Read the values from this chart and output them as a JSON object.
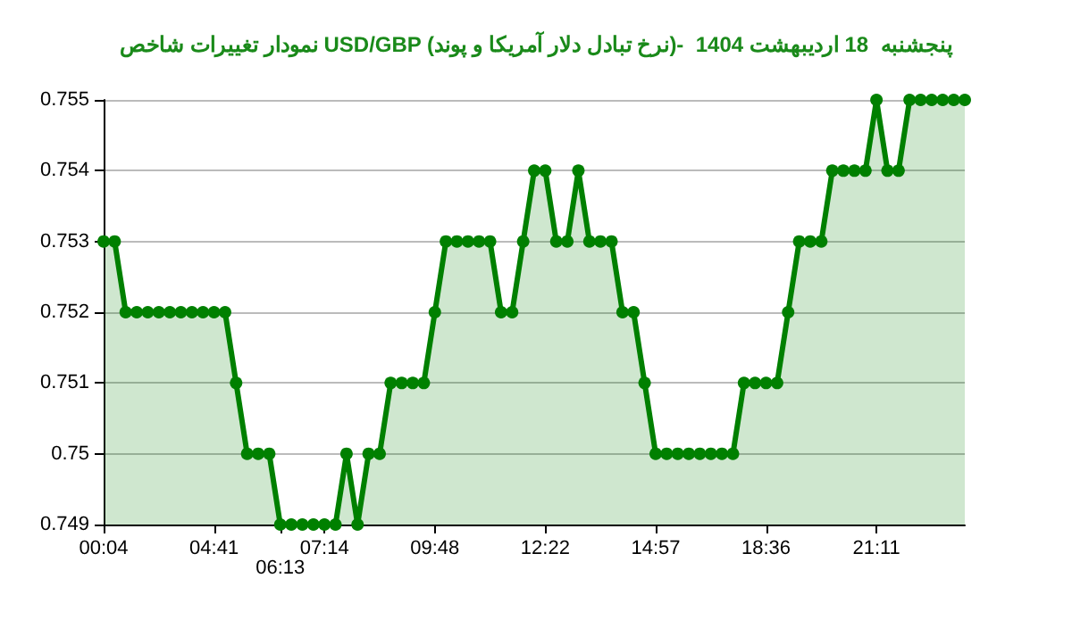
{
  "chart_data": {
    "type": "area",
    "title": "نمودار تغییرات شاخص USD/GBP (نرخ تبادل دلار آمریکا و پوند)-  پنجشنبه  18 اردیبهشت 1404",
    "categories": [
      "00:04",
      null,
      null,
      null,
      null,
      null,
      null,
      null,
      null,
      null,
      "04:41",
      null,
      null,
      null,
      null,
      null,
      "06:13",
      null,
      null,
      null,
      "07:14",
      null,
      null,
      null,
      null,
      null,
      null,
      null,
      null,
      null,
      "09:48",
      null,
      null,
      null,
      null,
      null,
      null,
      null,
      null,
      null,
      "12:22",
      null,
      null,
      null,
      null,
      null,
      null,
      null,
      null,
      null,
      "14:57",
      null,
      null,
      null,
      null,
      null,
      null,
      null,
      null,
      null,
      "18:36",
      null,
      null,
      null,
      null,
      null,
      null,
      null,
      null,
      null,
      "21:11",
      null,
      null,
      null,
      null,
      null,
      null,
      null,
      null
    ],
    "series": [
      {
        "color": "#008000",
        "values": [
          0.753,
          0.753,
          0.752,
          0.752,
          0.752,
          0.752,
          0.752,
          0.752,
          0.752,
          0.752,
          0.752,
          0.752,
          0.751,
          0.75,
          0.75,
          0.75,
          0.749,
          0.749,
          0.749,
          0.749,
          0.749,
          0.749,
          0.75,
          0.749,
          0.75,
          0.75,
          0.751,
          0.751,
          0.751,
          0.751,
          0.752,
          0.753,
          0.753,
          0.753,
          0.753,
          0.753,
          0.752,
          0.752,
          0.753,
          0.754,
          0.754,
          0.753,
          0.753,
          0.754,
          0.753,
          0.753,
          0.753,
          0.752,
          0.752,
          0.751,
          0.75,
          0.75,
          0.75,
          0.75,
          0.75,
          0.75,
          0.75,
          0.75,
          0.751,
          0.751,
          0.751,
          0.751,
          0.752,
          0.753,
          0.753,
          0.753,
          0.754,
          0.754,
          0.754,
          0.754,
          0.755,
          0.754,
          0.754,
          0.755,
          0.755,
          0.755,
          0.755,
          0.755,
          0.755
        ]
      }
    ],
    "ylim": [
      0.749,
      0.755
    ],
    "yticks": [
      0.749,
      0.75,
      0.751,
      0.752,
      0.753,
      0.754,
      0.755
    ],
    "grid": "y",
    "marker": "circle",
    "line_style": "solid"
  }
}
